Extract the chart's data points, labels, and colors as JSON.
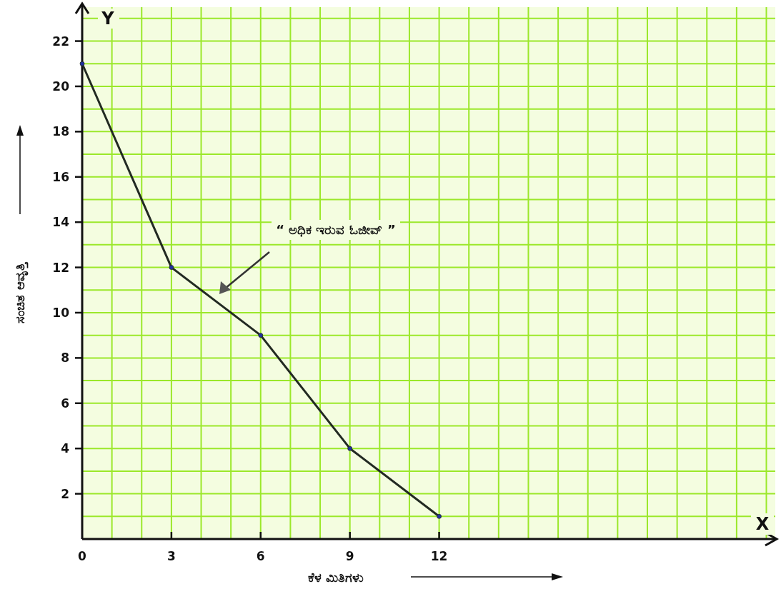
{
  "chart_data": {
    "type": "line",
    "xlabel": "ಕೆಳ ಮಿತಿಗಳು",
    "ylabel": "ಸಂಚಿತ ಆವೃತ್ತಿ",
    "x": [
      0,
      3,
      6,
      9,
      12
    ],
    "series": [
      {
        "color": "#222a22",
        "values": [
          21,
          12,
          9,
          4,
          1
        ]
      }
    ],
    "xlim": [
      0,
      23.3
    ],
    "ylim": [
      0,
      23.5
    ],
    "xticks": [
      0,
      3,
      6,
      9,
      12
    ],
    "yticks": [
      2,
      4,
      6,
      8,
      10,
      12,
      14,
      16,
      18,
      20,
      22
    ],
    "grid": true,
    "marker": "circle",
    "annotations": [
      "“ ಅಧಿಕ ಇರುವ ಓಜೀವ್ ”",
      "X",
      "Y"
    ]
  }
}
